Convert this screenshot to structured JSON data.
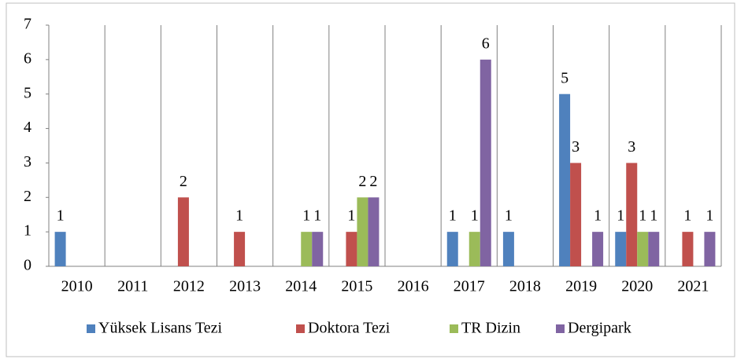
{
  "chart_data": {
    "type": "bar",
    "categories": [
      "2010",
      "2011",
      "2012",
      "2013",
      "2014",
      "2015",
      "2016",
      "2017",
      "2018",
      "2019",
      "2020",
      "2021"
    ],
    "series": [
      {
        "name": "Yüksek Lisans Tezi",
        "color": "#4f81bd",
        "values": [
          1,
          0,
          0,
          0,
          0,
          0,
          0,
          1,
          1,
          5,
          1,
          0
        ]
      },
      {
        "name": "Doktora Tezi",
        "color": "#c0504d",
        "values": [
          0,
          0,
          2,
          1,
          0,
          1,
          0,
          0,
          0,
          3,
          3,
          1
        ]
      },
      {
        "name": "TR Dizin",
        "color": "#9bbb59",
        "values": [
          0,
          0,
          0,
          0,
          1,
          2,
          0,
          1,
          0,
          0,
          1,
          0
        ]
      },
      {
        "name": "Dergipark",
        "color": "#8064a2",
        "values": [
          0,
          0,
          0,
          0,
          1,
          2,
          0,
          6,
          0,
          1,
          1,
          1
        ]
      }
    ],
    "ylim": [
      0,
      7
    ],
    "yticks": [
      0,
      1,
      2,
      3,
      4,
      5,
      6,
      7
    ],
    "grid": true,
    "legend": "bottom"
  }
}
